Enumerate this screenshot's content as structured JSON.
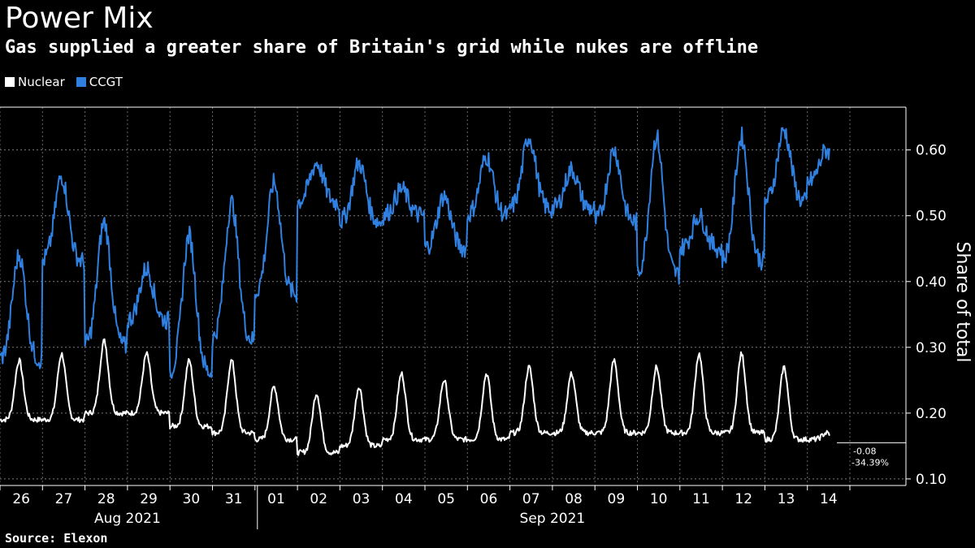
{
  "title": "Power Mix",
  "subtitle": "Gas supplied a greater share of Britain's grid while nukes are offline",
  "source": "Source: Elexon",
  "legend": [
    {
      "name": "Nuclear",
      "color": "#ffffff"
    },
    {
      "name": "CCGT",
      "color": "#2f80e0"
    }
  ],
  "chart_data": {
    "type": "line",
    "ylabel": "Share of total",
    "ylim": [
      0.09,
      0.665
    ],
    "yticks": [
      0.1,
      0.2,
      0.3,
      0.4,
      0.5,
      0.6
    ],
    "ytick_labels": [
      "0.10",
      "0.20",
      "0.30",
      "0.40",
      "0.50",
      "0.60"
    ],
    "grid": true,
    "legend_position": "top-left",
    "x_start": "2021-08-26",
    "x_end": "2021-09-14",
    "xtick_labels": [
      "26",
      "27",
      "28",
      "29",
      "30",
      "31",
      "01",
      "02",
      "03",
      "04",
      "05",
      "06",
      "07",
      "08",
      "09",
      "10",
      "11",
      "12",
      "13",
      "14"
    ],
    "month_labels": [
      "Aug 2021",
      "Sep 2021"
    ],
    "annotations": [
      "-0.08",
      "-34.39%"
    ],
    "series": [
      {
        "name": "Nuclear",
        "color": "#ffffff",
        "dates": [
          "2021-08-26",
          "2021-08-27",
          "2021-08-28",
          "2021-08-29",
          "2021-08-30",
          "2021-08-31",
          "2021-09-01",
          "2021-09-02",
          "2021-09-03",
          "2021-09-04",
          "2021-09-05",
          "2021-09-06",
          "2021-09-07",
          "2021-09-08",
          "2021-09-09",
          "2021-09-10",
          "2021-09-11",
          "2021-09-12",
          "2021-09-13",
          "2021-09-14"
        ],
        "peaks": [
          0.28,
          0.29,
          0.31,
          0.29,
          0.28,
          0.28,
          0.24,
          0.23,
          0.24,
          0.26,
          0.25,
          0.26,
          0.27,
          0.26,
          0.28,
          0.27,
          0.29,
          0.29,
          0.27,
          0.17
        ],
        "troughs": [
          0.19,
          0.19,
          0.2,
          0.2,
          0.18,
          0.17,
          0.16,
          0.14,
          0.15,
          0.16,
          0.16,
          0.16,
          0.17,
          0.17,
          0.17,
          0.17,
          0.17,
          0.17,
          0.16,
          0.16
        ]
      },
      {
        "name": "CCGT",
        "color": "#2f80e0",
        "dates": [
          "2021-08-26",
          "2021-08-27",
          "2021-08-28",
          "2021-08-29",
          "2021-08-30",
          "2021-08-31",
          "2021-09-01",
          "2021-09-02",
          "2021-09-03",
          "2021-09-04",
          "2021-09-05",
          "2021-09-06",
          "2021-09-07",
          "2021-09-08",
          "2021-09-09",
          "2021-09-10",
          "2021-09-11",
          "2021-09-12",
          "2021-09-13",
          "2021-09-14"
        ],
        "peaks": [
          0.44,
          0.56,
          0.49,
          0.42,
          0.47,
          0.52,
          0.55,
          0.58,
          0.58,
          0.54,
          0.53,
          0.59,
          0.62,
          0.57,
          0.6,
          0.62,
          0.5,
          0.62,
          0.63,
          0.6
        ],
        "troughs": [
          0.28,
          0.43,
          0.3,
          0.34,
          0.26,
          0.31,
          0.38,
          0.52,
          0.49,
          0.5,
          0.45,
          0.5,
          0.51,
          0.51,
          0.49,
          0.41,
          0.45,
          0.43,
          0.52,
          0.55
        ]
      }
    ]
  }
}
